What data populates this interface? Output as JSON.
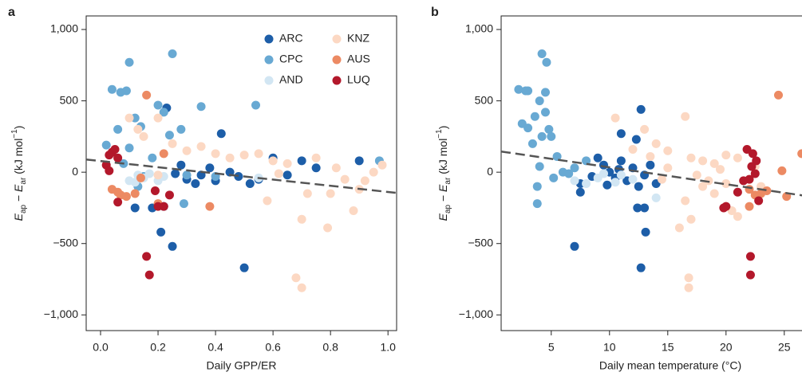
{
  "chart_data": [
    {
      "type": "scatter",
      "panel_label": "a",
      "xlabel": "Daily GPP/ER",
      "ylabel": [
        "E",
        "ap",
        " − ",
        "E",
        "ar",
        " (kJ mol",
        "−1",
        ")"
      ],
      "xlim": [
        -0.05,
        1.03
      ],
      "ylim": [
        -1110,
        1095
      ],
      "xticks": [
        {
          "value": 0,
          "label": "0.0"
        },
        0.2,
        0.4,
        0.6,
        0.8,
        {
          "value": 1,
          "label": "1.0"
        }
      ],
      "yticks": [
        {
          "value": -1000,
          "label": "−1,000"
        },
        {
          "value": -500,
          "label": "−500"
        },
        0,
        500,
        {
          "value": 1000,
          "label": "1,000"
        }
      ],
      "trend": {
        "x": [
          -0.05,
          1.03
        ],
        "y": [
          89,
          -145
        ]
      },
      "legend": "upper right",
      "series": [
        {
          "name": "ARC",
          "color": "#1d5ea8",
          "x": [
            0.12,
            0.18,
            0.21,
            0.25,
            0.23,
            0.22,
            0.42,
            0.5,
            0.3,
            0.35,
            0.4,
            0.45,
            0.55,
            0.6,
            0.28,
            0.33,
            0.38,
            0.48,
            0.7,
            0.75,
            0.9,
            0.65,
            0.52,
            0.26
          ],
          "values": [
            -250,
            -250,
            -420,
            -520,
            450,
            -240,
            270,
            -670,
            -50,
            -20,
            -60,
            0,
            -50,
            100,
            50,
            -80,
            30,
            -30,
            80,
            30,
            80,
            -20,
            -80,
            -10
          ]
        },
        {
          "name": "CPC",
          "color": "#68a9d3",
          "x": [
            0.02,
            0.04,
            0.07,
            0.09,
            0.1,
            0.25,
            0.12,
            0.14,
            0.2,
            0.22,
            0.24,
            0.28,
            0.35,
            0.54,
            0.06,
            0.1,
            0.13,
            0.29,
            0.97,
            0.3,
            0.4,
            0.18,
            0.08,
            0.15
          ],
          "values": [
            190,
            580,
            560,
            570,
            770,
            830,
            380,
            320,
            470,
            420,
            260,
            300,
            460,
            470,
            300,
            170,
            -100,
            -220,
            80,
            -20,
            -30,
            100,
            60,
            -30
          ]
        },
        {
          "name": "AND",
          "color": "#d2e6f3",
          "x": [
            0.1,
            0.13,
            0.15,
            0.17,
            0.2,
            0.12,
            0.55,
            0.22
          ],
          "values": [
            -60,
            -20,
            -40,
            -10,
            -60,
            -70,
            -40,
            -30
          ]
        },
        {
          "name": "KNZ",
          "color": "#fcd8c3",
          "x": [
            0.1,
            0.13,
            0.2,
            0.25,
            0.3,
            0.35,
            0.4,
            0.45,
            0.5,
            0.55,
            0.6,
            0.65,
            0.68,
            0.7,
            0.7,
            0.75,
            0.79,
            0.8,
            0.85,
            0.9,
            0.88,
            0.95,
            0.98,
            0.58,
            0.72,
            0.2,
            0.15,
            0.62,
            0.82,
            0.92
          ],
          "values": [
            380,
            300,
            380,
            200,
            150,
            180,
            130,
            100,
            120,
            130,
            80,
            60,
            -740,
            -810,
            -330,
            100,
            -390,
            -150,
            -50,
            -120,
            -270,
            0,
            50,
            -200,
            -150,
            -20,
            250,
            -10,
            30,
            -60
          ]
        },
        {
          "name": "AUS",
          "color": "#ec8a63",
          "x": [
            0.16,
            0.04,
            0.07,
            0.09,
            0.12,
            0.14,
            0.22,
            0.38,
            0.06,
            0.2
          ],
          "values": [
            540,
            -120,
            -160,
            -170,
            -150,
            -40,
            130,
            -240,
            -140,
            -220
          ]
        },
        {
          "name": "LUQ",
          "color": "#b3182b",
          "x": [
            0.02,
            0.03,
            0.04,
            0.05,
            0.06,
            0.03,
            0.06,
            0.16,
            0.17,
            0.2,
            0.22,
            0.24,
            0.19
          ],
          "values": [
            50,
            120,
            140,
            160,
            100,
            10,
            -210,
            -590,
            -720,
            -240,
            -240,
            -160,
            -130
          ]
        }
      ]
    },
    {
      "type": "scatter",
      "panel_label": "b",
      "xlabel": "Daily mean temperature (°C)",
      "ylabel": [
        "E",
        "ap",
        " − ",
        "E",
        "ar",
        " (kJ mol",
        "−1",
        ")"
      ],
      "xlim": [
        0.7,
        27
      ],
      "ylim": [
        -1110,
        1095
      ],
      "xticks": [
        5,
        10,
        15,
        20,
        25
      ],
      "yticks": [
        {
          "value": -1000,
          "label": "−1,000"
        },
        {
          "value": -500,
          "label": "−500"
        },
        0,
        500,
        {
          "value": 1000,
          "label": "1,000"
        }
      ],
      "trend": {
        "x": [
          0.7,
          27
        ],
        "y": [
          145,
          -168
        ]
      },
      "series": [
        {
          "color": "#1d5ea8",
          "x": [
            12.7,
            11,
            12.3,
            7,
            12.7,
            13.1,
            12.4,
            13,
            7.5,
            7.5,
            9,
            9.5,
            10,
            10.5,
            11,
            11.5,
            12,
            13,
            13.5,
            14,
            8.5,
            9.8,
            10.8,
            12.5
          ],
          "values": [
            440,
            270,
            230,
            -520,
            -670,
            -420,
            -250,
            -250,
            -80,
            -140,
            100,
            50,
            0,
            -40,
            80,
            -60,
            30,
            -20,
            50,
            -80,
            -30,
            -90,
            20,
            -100
          ]
        },
        {
          "color": "#68a9d3",
          "x": [
            2.2,
            2.8,
            3,
            4,
            4.2,
            4.6,
            4.5,
            4.5,
            3.6,
            3,
            3.4,
            4.2,
            5,
            5.5,
            4,
            3.8,
            3.8,
            5.2,
            6,
            7,
            8,
            2.5,
            4.8,
            6.5
          ],
          "values": [
            580,
            570,
            570,
            500,
            830,
            770,
            560,
            420,
            390,
            310,
            200,
            250,
            250,
            110,
            40,
            -220,
            -100,
            -40,
            0,
            30,
            80,
            340,
            300,
            -10
          ]
        },
        {
          "color": "#d2e6f3",
          "x": [
            7,
            9,
            9.5,
            10.5,
            12,
            14,
            8,
            11
          ],
          "values": [
            -60,
            -40,
            -10,
            -70,
            -50,
            -180,
            -80,
            -20
          ]
        },
        {
          "color": "#fcd8c3",
          "x": [
            10.5,
            13,
            16.5,
            14,
            15,
            17,
            18,
            19,
            20,
            21,
            16.8,
            16.8,
            17,
            18.5,
            19,
            20.5,
            21,
            22,
            23,
            16,
            16.5,
            15,
            13.5,
            17.5,
            19.5,
            14.5,
            12,
            20,
            22.5,
            18
          ],
          "values": [
            380,
            300,
            390,
            200,
            150,
            100,
            80,
            60,
            120,
            100,
            -740,
            -810,
            -330,
            -60,
            -150,
            -270,
            -310,
            -50,
            -100,
            -390,
            -200,
            30,
            110,
            -20,
            20,
            -50,
            160,
            -80,
            40,
            -100
          ]
        },
        {
          "color": "#ec8a63",
          "x": [
            24.5,
            26.5,
            22,
            22.5,
            23,
            24.8,
            25.2,
            23.5,
            22,
            20
          ],
          "values": [
            540,
            130,
            -120,
            -160,
            -150,
            10,
            -170,
            -130,
            -240,
            -240
          ]
        },
        {
          "color": "#b3182b",
          "x": [
            21.8,
            22.3,
            22.2,
            22,
            22.5,
            22.1,
            22.1,
            20,
            19.8,
            21,
            22.6,
            21.5,
            22.8
          ],
          "values": [
            160,
            130,
            40,
            -50,
            -10,
            -590,
            -720,
            -240,
            -250,
            -140,
            80,
            -60,
            -200
          ]
        }
      ]
    }
  ]
}
